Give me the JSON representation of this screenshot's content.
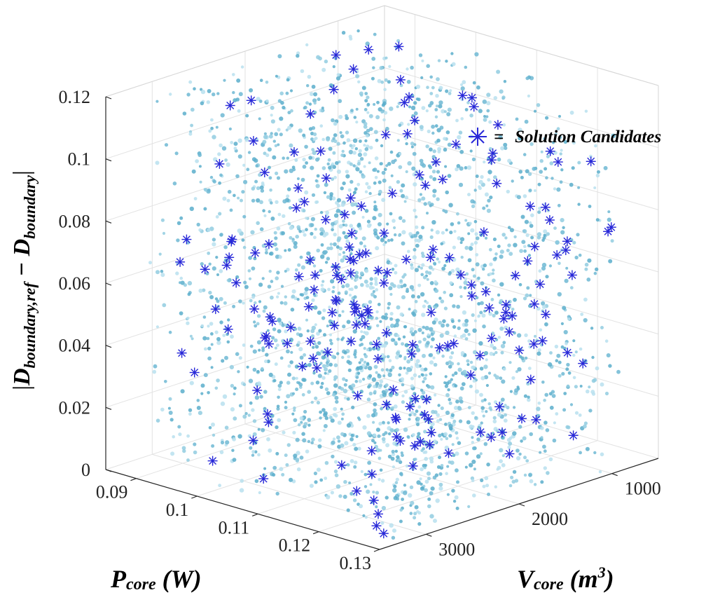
{
  "chart_data": {
    "type": "scatter",
    "dimensions": "3d",
    "x_ticks": [
      "0.09",
      "0.1",
      "0.11",
      "0.12",
      "0.13"
    ],
    "y_ticks": [
      "1000",
      "2000",
      "3000"
    ],
    "z_ticks": [
      "0",
      "0.02",
      "0.04",
      "0.06",
      "0.08",
      "0.1",
      "0.12"
    ],
    "xlabel": {
      "main": "P",
      "sub": "core",
      "rest": " (W)"
    },
    "ylabel": {
      "main": "V",
      "sub": "core",
      "rest": " (m",
      "sup": "3",
      "close": ")"
    },
    "zlabel": {
      "open": "|",
      "main1": "D",
      "sub1": "boundary,ref",
      "minus": " − ",
      "main2": "D",
      "sub2": "boundary",
      "close": "|"
    },
    "xlim": [
      0.085,
      0.13
    ],
    "ylim": [
      500,
      3500
    ],
    "zlim": [
      0,
      0.12
    ],
    "grid": true,
    "legend": {
      "position": "top-right",
      "marker": "*",
      "eq": "=",
      "label": "Solution Candidates"
    },
    "colors": {
      "cloud": "#6fb9d4",
      "cloud_light": "#b8e1ee",
      "candidate": "#2828d8"
    },
    "point_cloud_count_approx": 2600,
    "solution_candidates_count_approx": 190
  }
}
